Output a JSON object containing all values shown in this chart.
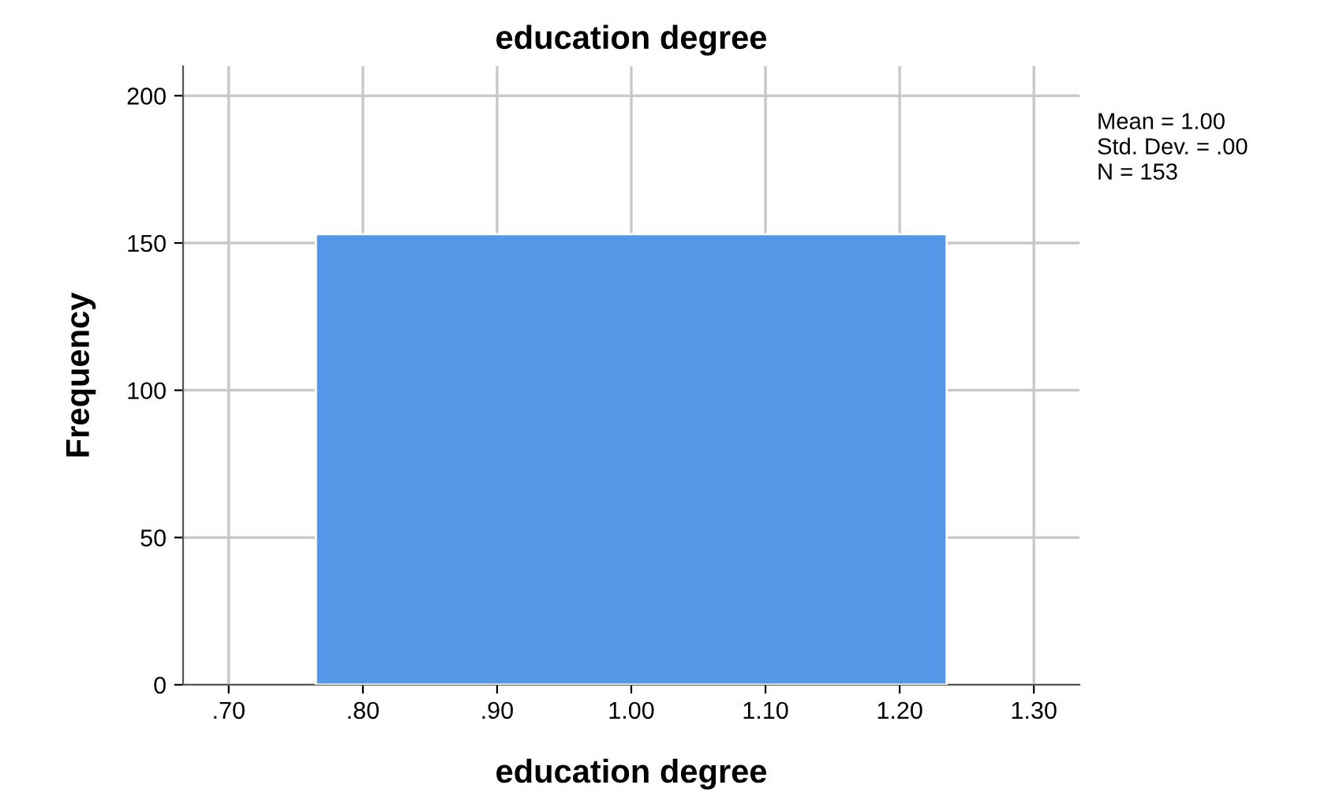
{
  "chart_data": {
    "type": "histogram",
    "title": "education degree",
    "xlabel": "education degree",
    "ylabel": "Frequency",
    "bins": [
      0.765,
      1.235
    ],
    "values": [
      153
    ],
    "color": "#5596e6",
    "xlim": [
      0.666,
      1.334
    ],
    "ylim": [
      0,
      210
    ],
    "xticks": [
      {
        "value": 0.7,
        "label": ".70"
      },
      {
        "value": 0.8,
        "label": ".80"
      },
      {
        "value": 0.9,
        "label": ".90"
      },
      {
        "value": 1.0,
        "label": "1.00"
      },
      {
        "value": 1.1,
        "label": "1.10"
      },
      {
        "value": 1.2,
        "label": "1.20"
      },
      {
        "value": 1.3,
        "label": "1.30"
      }
    ],
    "yticks": [
      0,
      50,
      100,
      150,
      200
    ],
    "grid": true,
    "annotations": [
      "Mean = 1.00",
      "Std. Dev. = .00",
      "N = 153"
    ]
  }
}
